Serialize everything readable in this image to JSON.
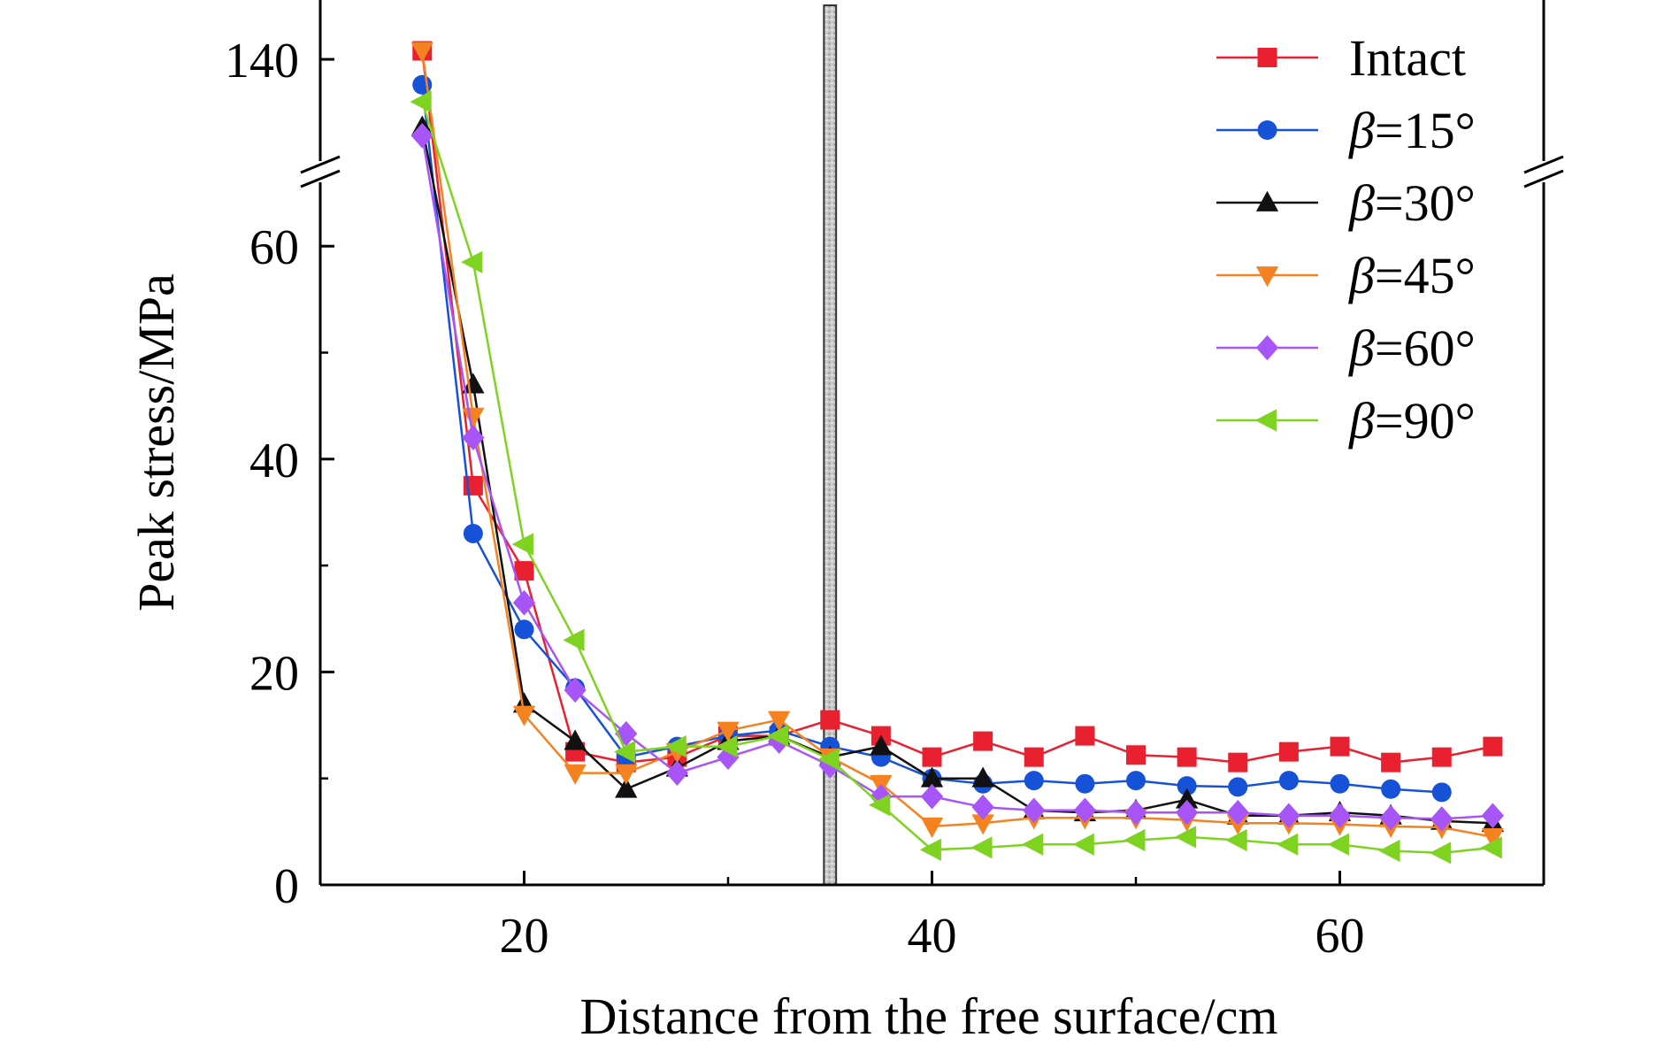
{
  "chart_data": {
    "type": "line",
    "title": "",
    "xlabel": "Distance from the free surface/cm",
    "ylabel": "Peak stress/MPa",
    "xlim": [
      10,
      70
    ],
    "ylim_lower": [
      0,
      67
    ],
    "ylim_upper_break": [
      128,
      147
    ],
    "x_ticks": [
      20,
      40,
      60
    ],
    "x_tick_labels": [
      "20",
      "40",
      "60"
    ],
    "y_ticks": [
      0,
      20,
      40,
      60,
      140
    ],
    "y_tick_labels": [
      "0",
      "20",
      "40",
      "60",
      "140"
    ],
    "axis_break": "between 65 and 128 MPa",
    "joint_band_x": [
      34.7,
      35.3
    ],
    "legend_position": "top-right",
    "series": [
      {
        "name": "Intact",
        "greek": "",
        "rest": "Intact",
        "color": "#e8202f",
        "marker": "square",
        "x": [
          15,
          17.5,
          20,
          22.5,
          25,
          27.5,
          30,
          32.5,
          35,
          37.5,
          40,
          42.5,
          45,
          47.5,
          50,
          52.5,
          55,
          57.5,
          60,
          62.5,
          65,
          67.5
        ],
        "y": [
          141,
          37.5,
          29.5,
          12.5,
          11.5,
          12,
          14,
          14,
          15.5,
          14,
          12,
          13.5,
          12,
          14,
          12.2,
          12,
          11.5,
          12.5,
          13,
          11.5,
          12,
          13
        ]
      },
      {
        "name": "β=15°",
        "greek": "β",
        "rest": "=15°",
        "color": "#1652d8",
        "marker": "circle",
        "x": [
          15,
          17.5,
          20,
          22.5,
          25,
          27.5,
          30,
          32.5,
          35,
          37.5,
          40,
          42.5,
          45,
          47.5,
          50,
          52.5,
          55,
          57.5,
          60,
          62.5,
          65
        ],
        "y": [
          137,
          33,
          24,
          18.5,
          12,
          13,
          14,
          14.5,
          13,
          12,
          10,
          9.5,
          9.8,
          9.5,
          9.8,
          9.3,
          9.2,
          9.8,
          9.5,
          9,
          8.7
        ]
      },
      {
        "name": "β=30°",
        "greek": "β",
        "rest": "=30°",
        "color": "#111111",
        "marker": "triangle-up",
        "x": [
          15,
          17.5,
          20,
          22.5,
          25,
          27.5,
          30,
          32.5,
          35,
          37.5,
          40,
          42.5,
          45,
          47.5,
          50,
          52.5,
          55,
          57.5,
          60,
          62.5,
          65,
          67.5
        ],
        "y": [
          132,
          47,
          17,
          13.5,
          9,
          11,
          13.5,
          14,
          12,
          13,
          10,
          10,
          7,
          6.8,
          7,
          8,
          6.5,
          6.5,
          6.8,
          6.5,
          6,
          5.8
        ]
      },
      {
        "name": "β=45°",
        "greek": "β",
        "rest": "=45°",
        "color": "#f58220",
        "marker": "triangle-down",
        "x": [
          15,
          17.5,
          20,
          22.5,
          25,
          27.5,
          30,
          32.5,
          35,
          37.5,
          40,
          42.5,
          45,
          47.5,
          50,
          52.5,
          55,
          57.5,
          60,
          62.5,
          65,
          67.5
        ],
        "y": [
          141,
          44,
          16,
          10.5,
          10.5,
          12.5,
          14.5,
          15.5,
          12,
          9.5,
          5.5,
          5.8,
          6.3,
          6.3,
          6.3,
          6.1,
          5.8,
          5.8,
          5.7,
          5.5,
          5.4,
          4.5
        ]
      },
      {
        "name": "β=60°",
        "greek": "β",
        "rest": "=60°",
        "color": "#a855f7",
        "marker": "diamond",
        "x": [
          15,
          17.5,
          20,
          22.5,
          25,
          27.5,
          30,
          32.5,
          35,
          37.5,
          40,
          42.5,
          45,
          47.5,
          50,
          52.5,
          55,
          57.5,
          60,
          62.5,
          65,
          67.5
        ],
        "y": [
          131,
          42,
          26.5,
          18.3,
          14.2,
          10.5,
          12,
          13.5,
          11.2,
          8.3,
          8.3,
          7.3,
          7,
          7,
          6.8,
          6.8,
          6.8,
          6.5,
          6.5,
          6.3,
          6.2,
          6.5
        ]
      },
      {
        "name": "β=90°",
        "greek": "β",
        "rest": "=90°",
        "color": "#7ed321",
        "marker": "triangle-left",
        "x": [
          15,
          17.5,
          20,
          22.5,
          25,
          27.5,
          30,
          32.5,
          35,
          37.5,
          40,
          42.5,
          45,
          47.5,
          50,
          52.5,
          55,
          57.5,
          60,
          62.5,
          65,
          67.5
        ],
        "y": [
          135,
          58.5,
          32,
          23,
          12.5,
          13,
          13,
          14,
          11.8,
          7.5,
          3.3,
          3.5,
          3.8,
          3.8,
          4.2,
          4.5,
          4.2,
          3.8,
          3.8,
          3.2,
          3,
          3.5
        ]
      }
    ]
  }
}
